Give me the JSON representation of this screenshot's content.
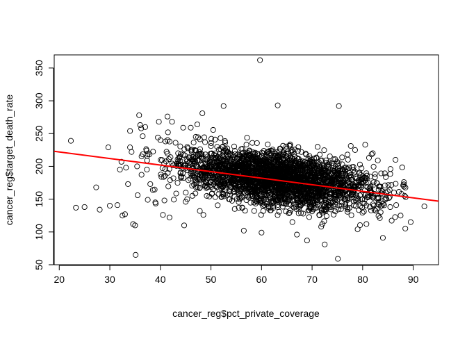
{
  "chart_data": {
    "type": "scatter",
    "title": "",
    "xlabel": "cancer_reg$pct_private_coverage",
    "ylabel": "cancer_reg$target_death_rate",
    "xlim": [
      19,
      95
    ],
    "ylim": [
      50,
      370
    ],
    "xticks": [
      20,
      30,
      40,
      50,
      60,
      70,
      80,
      90
    ],
    "yticks": [
      50,
      100,
      150,
      200,
      250,
      300,
      350
    ],
    "xtick_labels": [
      "20",
      "30",
      "40",
      "50",
      "60",
      "70",
      "80",
      "90"
    ],
    "ytick_labels": [
      "50",
      "100",
      "150",
      "200",
      "250",
      "300",
      "350"
    ],
    "grid": false,
    "legend": "none",
    "marker": "open-circle",
    "marker_color": "#000000",
    "fit_line": {
      "color": "#ff0000",
      "x": [
        19,
        95
      ],
      "y": [
        223,
        147
      ]
    },
    "points": [
      [
        22.3,
        239
      ],
      [
        23.3,
        137
      ],
      [
        25,
        138
      ],
      [
        27.3,
        168
      ],
      [
        28,
        134
      ],
      [
        29.7,
        229
      ],
      [
        30,
        140
      ],
      [
        31.5,
        141
      ],
      [
        32,
        195
      ],
      [
        32.3,
        207
      ],
      [
        32.5,
        125
      ],
      [
        33,
        127
      ],
      [
        33.2,
        198
      ],
      [
        33.6,
        173
      ],
      [
        34,
        254
      ],
      [
        34,
        229
      ],
      [
        34.3,
        222
      ],
      [
        34.6,
        112
      ],
      [
        35,
        110
      ],
      [
        35.1,
        65
      ],
      [
        35.4,
        200
      ],
      [
        35.5,
        156
      ],
      [
        35.8,
        278
      ],
      [
        36,
        263
      ],
      [
        36.2,
        258
      ],
      [
        36.5,
        246
      ],
      [
        37,
        260
      ],
      [
        37.4,
        216
      ],
      [
        37.5,
        149
      ],
      [
        38,
        173
      ],
      [
        38.5,
        164
      ],
      [
        39,
        145
      ],
      [
        39.5,
        244
      ],
      [
        39.7,
        268
      ],
      [
        40,
        240
      ],
      [
        40.2,
        184
      ],
      [
        40.5,
        126
      ],
      [
        40.8,
        148
      ],
      [
        41,
        238
      ],
      [
        41.4,
        276
      ],
      [
        41.8,
        122
      ],
      [
        42,
        214
      ],
      [
        42.3,
        268
      ],
      [
        43,
        236
      ],
      [
        43.5,
        220
      ],
      [
        44,
        191
      ],
      [
        44.5,
        259
      ],
      [
        44.7,
        110
      ],
      [
        45,
        146
      ],
      [
        45.3,
        150
      ],
      [
        46,
        259
      ],
      [
        46.5,
        214
      ],
      [
        47,
        245
      ],
      [
        47.3,
        264
      ],
      [
        47.8,
        132
      ],
      [
        48.3,
        281
      ],
      [
        52.5,
        292
      ],
      [
        59.7,
        362
      ],
      [
        63.2,
        293
      ],
      [
        75.3,
        292
      ],
      [
        75.1,
        59
      ],
      [
        72.5,
        81
      ],
      [
        69,
        87
      ],
      [
        55.5,
        137
      ],
      [
        62,
        145
      ],
      [
        48.5,
        126
      ],
      [
        50.5,
        181
      ],
      [
        56.5,
        102
      ],
      [
        60,
        99
      ],
      [
        67,
        96
      ],
      [
        71.8,
        108
      ],
      [
        79,
        104
      ],
      [
        82,
        220
      ],
      [
        83,
        209
      ],
      [
        80.5,
        233
      ],
      [
        84,
        91
      ],
      [
        85.5,
        196
      ],
      [
        86.5,
        210
      ],
      [
        87.5,
        125
      ],
      [
        88.5,
        153
      ],
      [
        89.5,
        115
      ],
      [
        92.2,
        139
      ],
      [
        77,
        218
      ],
      [
        78.5,
        225
      ]
    ],
    "cloud": {
      "n": 2800,
      "seed": 17,
      "x_center": 63,
      "x_sd": 9.5,
      "slope": -1.0,
      "intercept_at_center": 181,
      "residual_sd": 20
    }
  }
}
